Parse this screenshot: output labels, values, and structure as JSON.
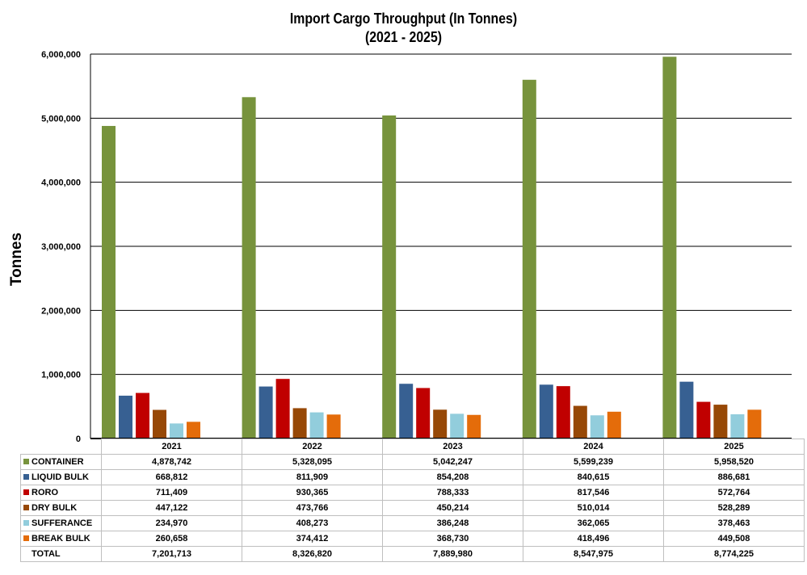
{
  "chart_data": {
    "type": "bar",
    "title": "Import Cargo Throughput (In Tonnes)",
    "subtitle": "(2021 - 2025)",
    "ylabel": "Tonnes",
    "xlabel": "",
    "ylim": [
      0,
      6000000
    ],
    "yticks": [
      "0",
      "1,000,000",
      "2,000,000",
      "3,000,000",
      "4,000,000",
      "5,000,000",
      "6,000,000"
    ],
    "grid": true,
    "legend": "data-table",
    "categories": [
      "2021",
      "2022",
      "2023",
      "2024",
      "2025"
    ],
    "series": [
      {
        "name": "CONTAINER",
        "color": "#77933C",
        "values": [
          4878742,
          5328095,
          5042247,
          5599239,
          5958520
        ],
        "labels": [
          "4,878,742",
          "5,328,095",
          "5,042,247",
          "5,599,239",
          "5,958,520"
        ]
      },
      {
        "name": "LIQUID BULK",
        "color": "#376092",
        "values": [
          668812,
          811909,
          854208,
          840615,
          886681
        ],
        "labels": [
          "668,812",
          "811,909",
          "854,208",
          "840,615",
          "886,681"
        ]
      },
      {
        "name": "RORO",
        "color": "#C00000",
        "values": [
          711409,
          930365,
          788333,
          817546,
          572764
        ],
        "labels": [
          "711,409",
          "930,365",
          "788,333",
          "817,546",
          "572,764"
        ]
      },
      {
        "name": "DRY BULK",
        "color": "#974806",
        "values": [
          447122,
          473766,
          450214,
          510014,
          528289
        ],
        "labels": [
          "447,122",
          "473,766",
          "450,214",
          "510,014",
          "528,289"
        ]
      },
      {
        "name": "SUFFERANCE",
        "color": "#92CDDC",
        "values": [
          234970,
          408273,
          386248,
          362065,
          378463
        ],
        "labels": [
          "234,970",
          "408,273",
          "386,248",
          "362,065",
          "378,463"
        ]
      },
      {
        "name": "BREAK BULK",
        "color": "#E46C0A",
        "values": [
          260658,
          374412,
          368730,
          418496,
          449508
        ],
        "labels": [
          "260,658",
          "374,412",
          "368,730",
          "418,496",
          "449,508"
        ]
      }
    ],
    "total": {
      "name": "TOTAL",
      "labels": [
        "7,201,713",
        "8,326,820",
        "7,889,980",
        "8,547,975",
        "8,774,225"
      ]
    }
  }
}
